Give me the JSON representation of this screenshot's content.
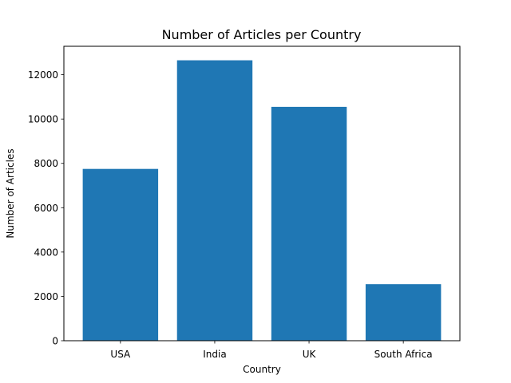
{
  "chart_data": {
    "type": "bar",
    "title": "Number of Articles per Country",
    "xlabel": "Country",
    "ylabel": "Number of Articles",
    "categories": [
      "USA",
      "India",
      "UK",
      "South Africa"
    ],
    "values": [
      7750,
      12650,
      10550,
      2550
    ],
    "ylim": [
      0,
      13282
    ],
    "yticks": [
      0,
      2000,
      4000,
      6000,
      8000,
      10000,
      12000
    ],
    "bar_color": "#1f77b4",
    "grid": false,
    "legend": "none"
  }
}
